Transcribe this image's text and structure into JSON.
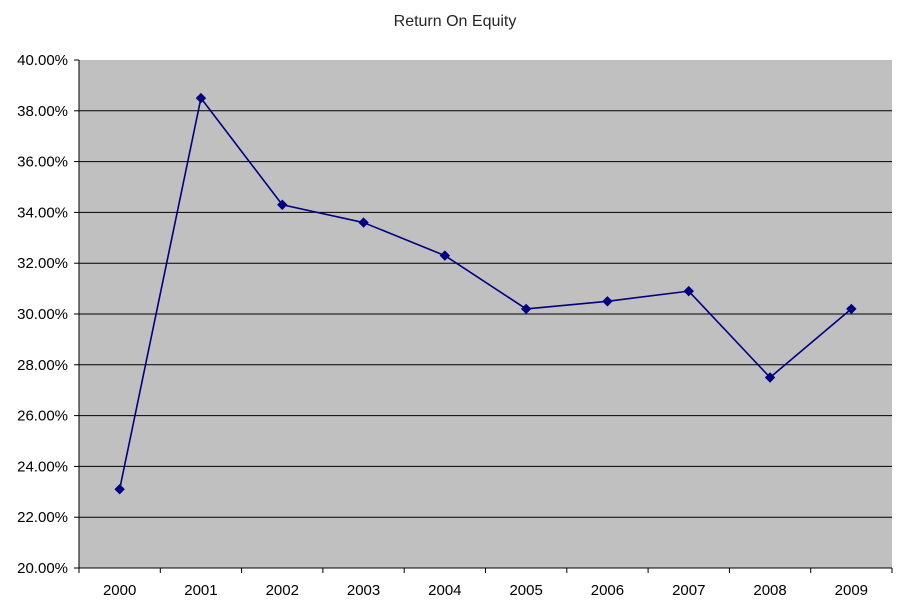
{
  "chart_data": {
    "type": "line",
    "title": "Return On Equity",
    "categories": [
      "2000",
      "2001",
      "2002",
      "2003",
      "2004",
      "2005",
      "2006",
      "2007",
      "2008",
      "2009"
    ],
    "series": [
      {
        "name": "Return On Equity",
        "values": [
          23.1,
          38.5,
          34.3,
          33.6,
          32.3,
          30.2,
          30.5,
          30.9,
          27.5,
          30.2
        ]
      }
    ],
    "ylim": [
      20,
      40
    ],
    "ytick_step": 2,
    "yticks": [
      {
        "v": 40,
        "label": "40.00%"
      },
      {
        "v": 38,
        "label": "38.00%"
      },
      {
        "v": 36,
        "label": "36.00%"
      },
      {
        "v": 34,
        "label": "34.00%"
      },
      {
        "v": 32,
        "label": "32.00%"
      },
      {
        "v": 30,
        "label": "30.00%"
      },
      {
        "v": 28,
        "label": "28.00%"
      },
      {
        "v": 26,
        "label": "26.00%"
      },
      {
        "v": 24,
        "label": "24.00%"
      },
      {
        "v": 22,
        "label": "22.00%"
      },
      {
        "v": 20,
        "label": "20.00%"
      }
    ],
    "grid": "horizontal",
    "legend": "none",
    "marker": "diamond",
    "colors": {
      "series": "#000080",
      "plot_background": "#c0c0c0",
      "gridline": "#000000",
      "axis": "#000000",
      "text": "#000000",
      "page_background": "#ffffff"
    }
  }
}
